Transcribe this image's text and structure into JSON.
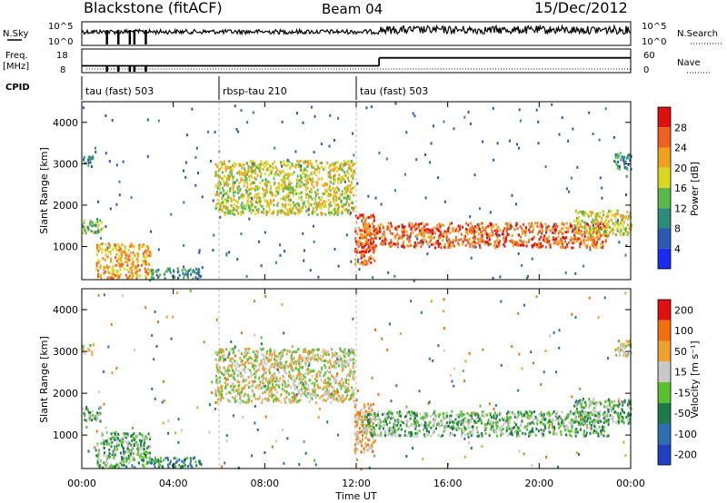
{
  "header": {
    "station": "Blackstone (fitACF)",
    "beam": "Beam 04",
    "date": "15/Dec/2012"
  },
  "noise_panel": {
    "left_label": "N.Sky",
    "right_label": "N.Search",
    "left_ticks": [
      "10^5",
      "10^0"
    ],
    "right_ticks": [
      "10^5",
      "10^0"
    ]
  },
  "freq_panel": {
    "left_label_1": "Freq.",
    "left_label_2": "[MHz]",
    "right_label": "Nave",
    "left_ticks": [
      "18",
      "8"
    ],
    "right_ticks": [
      "60",
      "0"
    ]
  },
  "cpid_panel": {
    "label": "CPID",
    "segments": [
      {
        "name": "tau (fast) 503",
        "start_hour": 0,
        "end_hour": 6
      },
      {
        "name": "rbsp-tau 210",
        "start_hour": 6,
        "end_hour": 12
      },
      {
        "name": "tau (fast) 503",
        "start_hour": 12,
        "end_hour": 24
      }
    ]
  },
  "power_panel": {
    "ylabel": "Slant Range [km]",
    "yticks": [
      "4000",
      "3000",
      "2000",
      "1000"
    ],
    "colorbar_label": "Power [dB]",
    "colorbar_ticks": [
      "28",
      "24",
      "20",
      "16",
      "12",
      "8",
      "4"
    ]
  },
  "velocity_panel": {
    "ylabel": "Slant Range [km]",
    "yticks": [
      "4000",
      "3000",
      "2000",
      "1000"
    ],
    "colorbar_label": "Velocity [m s⁻¹]",
    "colorbar_ticks": [
      "200",
      "100",
      "50",
      "15",
      "-15",
      "-50",
      "-100",
      "-200"
    ]
  },
  "xaxis": {
    "label": "Time UT",
    "ticks": [
      "00:00",
      "04:00",
      "08:00",
      "12:00",
      "16:00",
      "20:00",
      "00:00"
    ]
  },
  "chart_data": {
    "type": "heatmap",
    "title": "Blackstone (fitACF)  Beam 04  15/Dec/2012",
    "xlabel": "Time UT",
    "ylabel": "Slant Range [km]",
    "xlim_hours": [
      0,
      24
    ],
    "ylim_km": [
      200,
      4500
    ],
    "power_colorscale": {
      "label": "Power [dB]",
      "levels": [
        4,
        8,
        12,
        16,
        20,
        24,
        28
      ],
      "colors": [
        "#1a2cf0",
        "#2a5ab0",
        "#2e8b7a",
        "#5ab84a",
        "#d8d820",
        "#f0a020",
        "#f06020",
        "#e01010"
      ]
    },
    "velocity_colorscale": {
      "label": "Velocity [m s⁻¹]",
      "levels": [
        200,
        100,
        50,
        15,
        -15,
        -50,
        -100,
        -200
      ],
      "colors": [
        "#2040c0",
        "#2f6fb0",
        "#1f7a4a",
        "#5ac030",
        "#c8c8c8",
        "#f0a030",
        "#f07010",
        "#e01010"
      ]
    },
    "backscatter_regions": [
      {
        "t0": 0.0,
        "t1": 0.9,
        "r0": 1350,
        "r1": 1700,
        "power_level": 12,
        "velocity_level": -15
      },
      {
        "t0": 0.0,
        "t1": 0.5,
        "r0": 2950,
        "r1": 3200,
        "power_level": 8,
        "velocity_level": 15
      },
      {
        "t0": 0.6,
        "t1": 3.0,
        "r0": 250,
        "r1": 1100,
        "power_level": 20,
        "velocity_level": -15
      },
      {
        "t0": 3.0,
        "t1": 5.2,
        "r0": 250,
        "r1": 500,
        "power_level": 8,
        "velocity_level": -50
      },
      {
        "t0": 5.8,
        "t1": 11.9,
        "r0": 1800,
        "r1": 3100,
        "power_level": 16,
        "velocity_level": 15
      },
      {
        "t0": 11.9,
        "t1": 12.8,
        "r0": 600,
        "r1": 1800,
        "power_level": 24,
        "velocity_level": 50
      },
      {
        "t0": 12.2,
        "t1": 23.0,
        "r0": 1000,
        "r1": 1600,
        "power_level": 24,
        "velocity_level": -15
      },
      {
        "t0": 21.5,
        "t1": 24.0,
        "r0": 1300,
        "r1": 1900,
        "power_level": 16,
        "velocity_level": -15
      },
      {
        "t0": 23.3,
        "t1": 24.0,
        "r0": 2900,
        "r1": 3300,
        "power_level": 8,
        "velocity_level": 15
      }
    ],
    "frequency_mhz": [
      {
        "t0": 0,
        "t1": 13,
        "value": 10.5
      },
      {
        "t0": 13,
        "t1": 24,
        "value": 14.5
      }
    ],
    "cpid_changes_hours": [
      6,
      12
    ]
  }
}
